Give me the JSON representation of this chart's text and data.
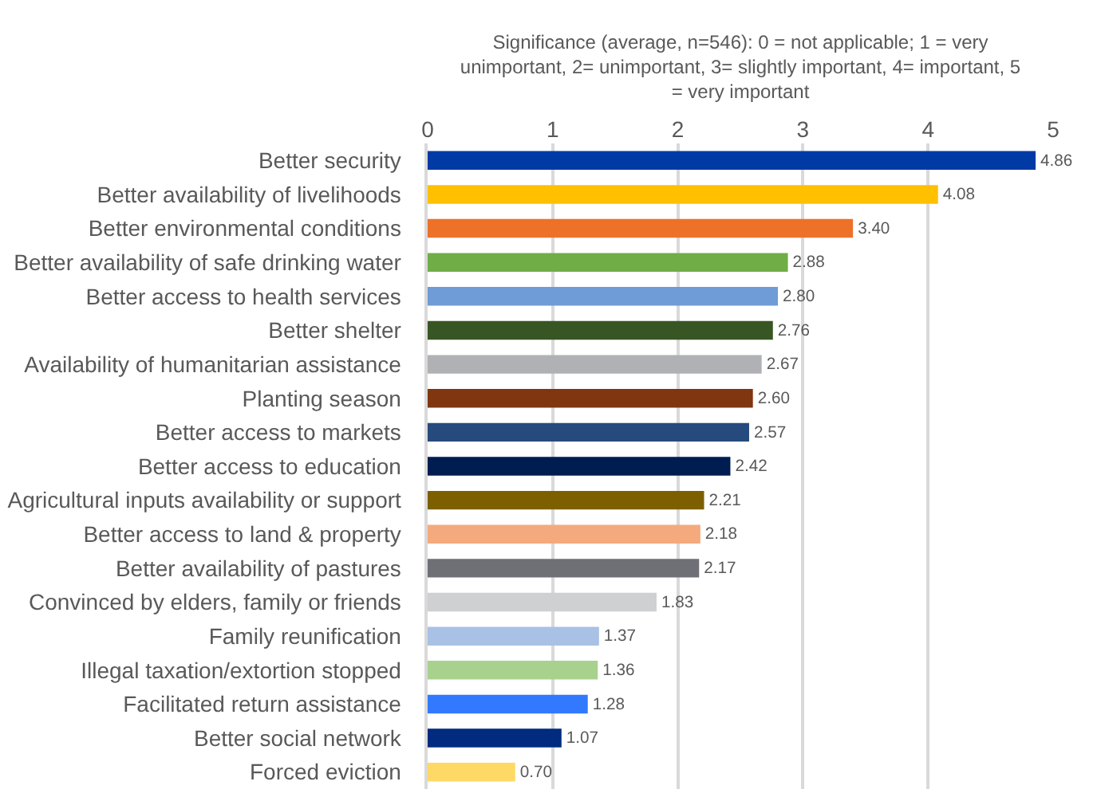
{
  "chart_data": {
    "type": "bar",
    "orientation": "horizontal",
    "xlabel": "Significance (average, n=546): 0 = not applicable; 1 = very unimportant, 2= unimportant, 3= slightly important, 4= important, 5 = very important",
    "categories": [
      "Better security",
      "Better availability of livelihoods",
      "Better environmental conditions",
      "Better availability of safe drinking water",
      "Better access to health services",
      "Better shelter",
      "Availability of humanitarian assistance",
      "Planting season",
      "Better access to markets",
      "Better access to education",
      "Agricultural inputs availability or support",
      "Better access to land & property",
      "Better availability of pastures",
      "Convinced by elders, family or friends",
      "Family reunification",
      "Illegal taxation/extortion stopped",
      "Facilitated return assistance",
      "Better social network",
      "Forced eviction"
    ],
    "values": [
      4.86,
      4.08,
      3.4,
      2.88,
      2.8,
      2.76,
      2.67,
      2.6,
      2.57,
      2.42,
      2.21,
      2.18,
      2.17,
      1.83,
      1.37,
      1.36,
      1.28,
      1.07,
      0.7
    ],
    "value_labels": [
      "4.86",
      "4.08",
      "3.40",
      "2.88",
      "2.80",
      "2.76",
      "2.67",
      "2.60",
      "2.57",
      "2.42",
      "2.21",
      "2.18",
      "2.17",
      "1.83",
      "1.37",
      "1.36",
      "1.28",
      "1.07",
      "0.70"
    ],
    "colors": [
      "#003aa5",
      "#ffc000",
      "#ed7128",
      "#70ad47",
      "#6f9bd6",
      "#375623",
      "#b0b1b4",
      "#80360f",
      "#264a7d",
      "#001d51",
      "#7e5f00",
      "#f4aa7c",
      "#6f7075",
      "#cfd0d2",
      "#a8c1e4",
      "#a8d18e",
      "#3179ff",
      "#002b7f",
      "#ffd966"
    ],
    "xlim": [
      0,
      5
    ],
    "xticks": [
      0,
      1,
      2,
      3,
      4,
      5
    ],
    "grid": "x"
  }
}
